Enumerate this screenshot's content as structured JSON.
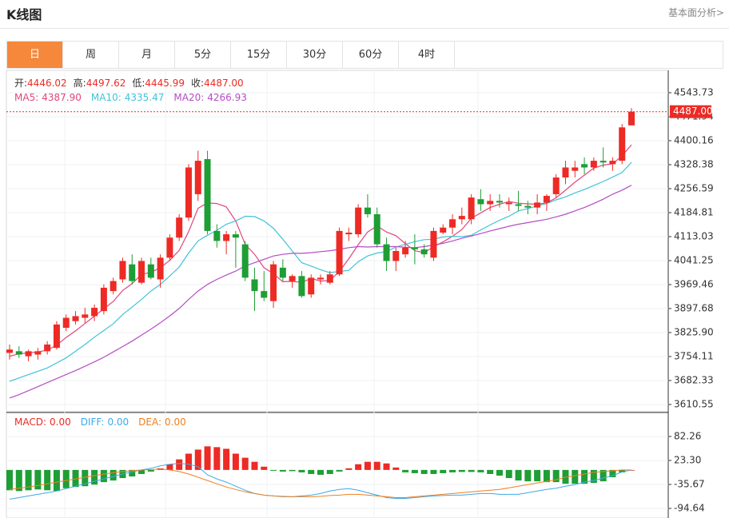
{
  "header": {
    "title": "K线图",
    "link": "基本面分析>"
  },
  "tabs": [
    "日",
    "周",
    "月",
    "5分",
    "15分",
    "30分",
    "60分",
    "4时"
  ],
  "active_tab": 0,
  "chart_data": [
    {
      "type": "candlestick",
      "info": [
        {
          "label": "开:",
          "value": "4446.02"
        },
        {
          "label": "高:",
          "value": "4497.62"
        },
        {
          "label": "低:",
          "value": "4445.99"
        },
        {
          "label": "收:",
          "value": "4487.00"
        }
      ],
      "open": [
        3765,
        3770,
        3755,
        3760,
        3770,
        3780,
        3840,
        3860,
        3870,
        3875,
        3890,
        3950,
        3985,
        4030,
        3975,
        4030,
        3985,
        4050,
        4110,
        4170,
        4240,
        4345,
        4130,
        4100,
        4120,
        4090,
        3985,
        3950,
        3920,
        4020,
        3980,
        3995,
        3940,
        3985,
        3975,
        4000,
        4120,
        4120,
        4200,
        4180,
        4090,
        4040,
        4060,
        4080,
        4075,
        4050,
        4125,
        4140,
        4165,
        4165,
        4225,
        4210,
        4220,
        4210,
        4210,
        4205,
        4200,
        4215,
        4240,
        4290,
        4310,
        4330,
        4320,
        4340,
        4330,
        4340,
        4446.02
      ],
      "high": [
        3790,
        3785,
        3775,
        3780,
        3800,
        3860,
        3880,
        3890,
        3900,
        3910,
        3970,
        3990,
        4050,
        4060,
        4050,
        4050,
        4060,
        4120,
        4180,
        4330,
        4370,
        4370,
        4150,
        4130,
        4130,
        4100,
        4020,
        4010,
        4040,
        4045,
        4000,
        4010,
        4000,
        4000,
        4010,
        4140,
        4140,
        4210,
        4240,
        4200,
        4110,
        4080,
        4100,
        4120,
        4090,
        4140,
        4150,
        4180,
        4200,
        4240,
        4255,
        4240,
        4240,
        4230,
        4250,
        4220,
        4240,
        4240,
        4300,
        4340,
        4340,
        4350,
        4350,
        4380,
        4350,
        4450,
        4497.62
      ],
      "low": [
        3745,
        3750,
        3740,
        3745,
        3760,
        3775,
        3830,
        3850,
        3855,
        3860,
        3880,
        3940,
        3975,
        3970,
        3970,
        3985,
        3960,
        4040,
        4100,
        4160,
        4220,
        4120,
        4080,
        4060,
        4020,
        3980,
        3890,
        3920,
        3900,
        3980,
        3960,
        3930,
        3930,
        3970,
        3970,
        3995,
        4100,
        4110,
        4170,
        4080,
        4010,
        4010,
        4050,
        4030,
        4050,
        4040,
        4120,
        4120,
        4150,
        4150,
        4190,
        4190,
        4200,
        4190,
        4190,
        4180,
        4180,
        4190,
        4230,
        4270,
        4290,
        4300,
        4310,
        4320,
        4310,
        4330,
        4445.99
      ],
      "close": [
        3775,
        3760,
        3770,
        3770,
        3790,
        3850,
        3870,
        3875,
        3880,
        3900,
        3960,
        3980,
        4040,
        3980,
        4040,
        3990,
        4050,
        4110,
        4170,
        4320,
        4340,
        4130,
        4100,
        4120,
        4110,
        3990,
        3950,
        3930,
        4030,
        3990,
        3995,
        3935,
        3990,
        3990,
        4000,
        4130,
        4125,
        4200,
        4180,
        4090,
        4040,
        4070,
        4080,
        4075,
        4060,
        4130,
        4140,
        4165,
        4175,
        4230,
        4210,
        4220,
        4215,
        4215,
        4205,
        4200,
        4215,
        4235,
        4290,
        4320,
        4320,
        4320,
        4340,
        4335,
        4340,
        4440,
        4487.0
      ],
      "up_color": "#ee2a24",
      "down_color": "#1e9e35",
      "series": [
        {
          "name": "MA5:",
          "last_label": "4387.90",
          "color": "#e0467f",
          "values": [
            3755,
            3762,
            3765,
            3768,
            3773,
            3788,
            3811,
            3831,
            3853,
            3875,
            3897,
            3919,
            3952,
            3972,
            4000,
            4006,
            4020,
            4042,
            4072,
            4128,
            4198,
            4214,
            4212,
            4202,
            4160,
            4090,
            4060,
            4020,
            4002,
            3978,
            3979,
            3976,
            3988,
            3980,
            3982,
            4009,
            4047,
            4089,
            4127,
            4145,
            4127,
            4116,
            4092,
            4071,
            4065,
            4083,
            4097,
            4114,
            4134,
            4168,
            4184,
            4200,
            4210,
            4218,
            4213,
            4211,
            4210,
            4214,
            4229,
            4252,
            4276,
            4297,
            4318,
            4327,
            4331,
            4355,
            4387.9
          ]
        },
        {
          "name": "MA10:",
          "last_label": "4335.47",
          "color": "#3fc3d8",
          "values": [
            3680,
            3690,
            3700,
            3710,
            3720,
            3735,
            3750,
            3770,
            3790,
            3812,
            3832,
            3852,
            3880,
            3902,
            3925,
            3950,
            3970,
            3995,
            4022,
            4064,
            4100,
            4117,
            4132,
            4150,
            4160,
            4174,
            4173,
            4160,
            4138,
            4105,
            4070,
            4035,
            4025,
            4014,
            4005,
            4009,
            4012,
            4038,
            4055,
            4064,
            4068,
            4082,
            4090,
            4098,
            4104,
            4105,
            4112,
            4114,
            4113,
            4117,
            4133,
            4148,
            4162,
            4174,
            4190,
            4197,
            4205,
            4212,
            4223,
            4232,
            4244,
            4254,
            4266,
            4278,
            4291,
            4305,
            4335.47
          ]
        },
        {
          "name": "MA20:",
          "last_label": "4266.93",
          "color": "#b54dc4",
          "values": [
            3630,
            3640,
            3652,
            3664,
            3676,
            3688,
            3700,
            3712,
            3725,
            3738,
            3752,
            3768,
            3784,
            3800,
            3818,
            3836,
            3855,
            3876,
            3898,
            3925,
            3950,
            3970,
            3985,
            3998,
            4010,
            4025,
            4035,
            4045,
            4055,
            4060,
            4063,
            4063,
            4065,
            4068,
            4071,
            4075,
            4080,
            4083,
            4082,
            4083,
            4083,
            4083,
            4081,
            4080,
            4083,
            4088,
            4093,
            4100,
            4108,
            4115,
            4122,
            4130,
            4137,
            4144,
            4150,
            4155,
            4160,
            4165,
            4172,
            4180,
            4190,
            4200,
            4212,
            4225,
            4240,
            4252,
            4266.93
          ]
        }
      ],
      "last_price": {
        "value": 4487.0,
        "label": "4487.00"
      },
      "ylim": [
        3589.0,
        4610.7
      ],
      "yticks": [
        4543.73,
        4471.94,
        4400.16,
        4328.38,
        4256.59,
        4184.81,
        4113.03,
        4041.25,
        3969.46,
        3897.68,
        {
          "value": 3825.9,
          "label": "3825.90"
        },
        3754.11,
        3682.33,
        3610.55
      ]
    },
    {
      "type": "macd",
      "up_color": "#ee2a24",
      "down_color": "#1e9e35",
      "series": [
        {
          "name": "MACD:",
          "last_label": "0.00",
          "color": "#ee2a24",
          "values": [
            -50,
            -52,
            -50,
            -48,
            -50,
            -52,
            -45,
            -42,
            -40,
            -36,
            -30,
            -26,
            -20,
            -16,
            -10,
            -4,
            4,
            14,
            26,
            40,
            50,
            58,
            56,
            52,
            40,
            30,
            20,
            8,
            -2,
            -4,
            -3,
            -6,
            -10,
            -12,
            -10,
            -4,
            4,
            14,
            20,
            20,
            16,
            6,
            -6,
            -8,
            -10,
            -10,
            -8,
            -6,
            -5,
            -5,
            -6,
            -10,
            -14,
            -20,
            -26,
            -28,
            -28,
            -30,
            -30,
            -34,
            -34,
            -34,
            -32,
            -28,
            -18,
            -6,
            0
          ]
        },
        {
          "name": "DIFF:",
          "last_label": "0.00",
          "color": "#3fa9e8",
          "values": [
            -72,
            -68,
            -64,
            -60,
            -56,
            -52,
            -46,
            -40,
            -34,
            -28,
            -22,
            -16,
            -10,
            -5,
            0,
            4,
            10,
            14,
            16,
            14,
            8,
            -12,
            -22,
            -30,
            -40,
            -50,
            -58,
            -62,
            -64,
            -66,
            -66,
            -64,
            -62,
            -58,
            -52,
            -48,
            -46,
            -50,
            -56,
            -62,
            -68,
            -70,
            -70,
            -68,
            -66,
            -64,
            -63,
            -62,
            -62,
            -60,
            -58,
            -58,
            -60,
            -60,
            -60,
            -56,
            -52,
            -48,
            -45,
            -40,
            -36,
            -30,
            -26,
            -20,
            -14,
            -5,
            0
          ]
        },
        {
          "name": "DEA:",
          "last_label": "0.00",
          "color": "#f07f22",
          "values": [
            -48,
            -45,
            -42,
            -38,
            -34,
            -30,
            -26,
            -22,
            -18,
            -14,
            -10,
            -7,
            -4,
            -2,
            0,
            1,
            2,
            0,
            -4,
            -10,
            -18,
            -26,
            -34,
            -42,
            -48,
            -54,
            -58,
            -62,
            -64,
            -65,
            -66,
            -66,
            -66,
            -65,
            -63,
            -62,
            -60,
            -60,
            -62,
            -64,
            -66,
            -68,
            -68,
            -66,
            -64,
            -62,
            -60,
            -58,
            -56,
            -54,
            -52,
            -50,
            -48,
            -44,
            -40,
            -36,
            -32,
            -28,
            -24,
            -18,
            -14,
            -10,
            -6,
            -4,
            -2,
            0,
            0
          ]
        }
      ],
      "ylim": [
        -118.2,
        139.3
      ],
      "yticks": [
        82.26,
        {
          "value": 23.3,
          "label": "23.30"
        },
        -35.67,
        -94.64
      ]
    }
  ]
}
